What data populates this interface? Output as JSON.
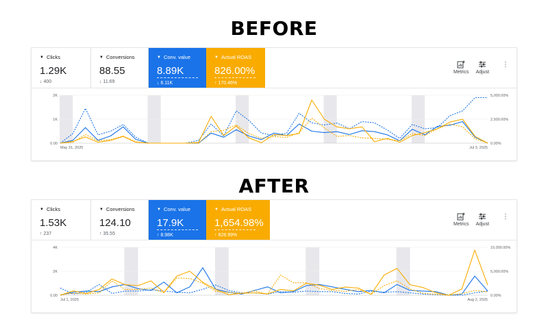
{
  "labels": {
    "before": "BEFORE",
    "after": "AFTER"
  },
  "tools": {
    "metrics": "Metrics",
    "adjust": "Adjust",
    "more": "⋮"
  },
  "before": {
    "cards": [
      {
        "label": "Clicks",
        "value": "1.29K",
        "change": "↓ 400",
        "color": "plain"
      },
      {
        "label": "Conversions",
        "value": "88.55",
        "change": "↓ 11.69",
        "color": "plain"
      },
      {
        "label": "Conv. value",
        "value": "8.89K",
        "change": "↓ 6.11K",
        "color": "blue"
      },
      {
        "label": "Actual ROAS",
        "value": "826.00%",
        "change": "↑ 170.46%",
        "color": "orange"
      }
    ],
    "chart_data": {
      "type": "line",
      "x_start_label": "May 31, 2025",
      "x_end_label": "Jul 3, 2025",
      "y_left_ticks": [
        "2K",
        "1K",
        "0.00"
      ],
      "y_right_ticks": [
        "5,000.00%",
        "2,500.00%",
        "0.00%"
      ],
      "ylim_left": [
        0,
        2000
      ],
      "ylim_right": [
        0,
        5000
      ],
      "weekend_bands": [
        0,
        7,
        14,
        21,
        28
      ],
      "colors": {
        "blue": "#1a73e8",
        "orange": "#f9ab00"
      },
      "series": [
        {
          "color": "blue",
          "dashed": false,
          "axis": "left",
          "values": [
            0,
            120,
            650,
            120,
            300,
            680,
            160,
            0,
            0,
            0,
            0,
            0,
            420,
            250,
            560,
            300,
            150,
            420,
            320,
            800,
            500,
            440,
            480,
            360,
            520,
            480,
            350,
            100,
            580,
            350,
            700,
            750,
            900,
            250,
            0
          ]
        },
        {
          "color": "blue",
          "dashed": true,
          "axis": "left",
          "values": [
            0,
            400,
            1450,
            350,
            500,
            780,
            250,
            0,
            0,
            0,
            0,
            120,
            800,
            300,
            1350,
            950,
            420,
            320,
            420,
            1250,
            850,
            760,
            840,
            600,
            900,
            850,
            550,
            200,
            780,
            600,
            650,
            1150,
            1350,
            1900,
            1900
          ]
        },
        {
          "color": "orange",
          "dashed": false,
          "axis": "right",
          "values": [
            0,
            180,
            650,
            100,
            280,
            700,
            100,
            0,
            0,
            0,
            0,
            80,
            2800,
            800,
            1800,
            550,
            50,
            900,
            800,
            1000,
            4500,
            2500,
            1700,
            1500,
            1700,
            150,
            500,
            100,
            800,
            1100,
            1500,
            2200,
            2500,
            700,
            0
          ]
        },
        {
          "color": "orange",
          "dashed": true,
          "axis": "right",
          "values": [
            0,
            100,
            900,
            250,
            380,
            750,
            150,
            0,
            0,
            0,
            0,
            0,
            1200,
            1350,
            1900,
            1000,
            500,
            700,
            600,
            1100,
            2600,
            1600,
            700,
            800,
            550,
            500,
            400,
            250,
            1000,
            800,
            1500,
            2000,
            1700,
            450,
            0
          ]
        }
      ]
    }
  },
  "after": {
    "cards": [
      {
        "label": "Clicks",
        "value": "1.53K",
        "change": "↑ 237",
        "color": "plain"
      },
      {
        "label": "Conversions",
        "value": "124.10",
        "change": "↑ 35.55",
        "color": "plain"
      },
      {
        "label": "Conv. value",
        "value": "17.9K",
        "change": "↑ 8.98K",
        "color": "blue"
      },
      {
        "label": "Actual ROAS",
        "value": "1,654.98%",
        "change": "↑ 828.99%",
        "color": "orange"
      }
    ],
    "chart_data": {
      "type": "line",
      "x_start_label": "Jul 1, 2025",
      "x_end_label": "Aug 2, 2025",
      "y_left_ticks": [
        "4K",
        "2K",
        "0.00"
      ],
      "y_right_ticks": [
        "10,000.00%",
        "5,000.00%",
        "0.00%"
      ],
      "ylim_left": [
        0,
        4000
      ],
      "ylim_right": [
        0,
        10000
      ],
      "weekend_bands": [
        5,
        12,
        19,
        26
      ],
      "colors": {
        "blue": "#1a73e8",
        "orange": "#f9ab00"
      },
      "series": [
        {
          "color": "blue",
          "dashed": false,
          "axis": "left",
          "values": [
            0,
            250,
            350,
            300,
            700,
            900,
            550,
            400,
            1100,
            200,
            700,
            2300,
            500,
            250,
            100,
            400,
            700,
            200,
            300,
            800,
            900,
            700,
            500,
            300,
            400,
            200,
            900,
            400,
            350,
            300,
            0,
            100,
            1600,
            350
          ]
        },
        {
          "color": "blue",
          "dashed": true,
          "axis": "left",
          "values": [
            600,
            100,
            250,
            900,
            150,
            350,
            350,
            450,
            350,
            250,
            200,
            500,
            850,
            400,
            200,
            200,
            100,
            300,
            250,
            350,
            300,
            300,
            150,
            100,
            350,
            250,
            300,
            200,
            100,
            50,
            0,
            0,
            200,
            350
          ]
        },
        {
          "color": "orange",
          "dashed": false,
          "axis": "right",
          "values": [
            0,
            900,
            350,
            1200,
            3400,
            2200,
            2000,
            3000,
            600,
            4000,
            5000,
            2700,
            1200,
            100,
            400,
            500,
            300,
            1200,
            900,
            2500,
            2100,
            1200,
            1700,
            1500,
            200,
            4200,
            5600,
            2200,
            1600,
            500,
            0,
            1300,
            9400,
            2100
          ]
        },
        {
          "color": "orange",
          "dashed": true,
          "axis": "right",
          "values": [
            100,
            400,
            250,
            500,
            3000,
            1200,
            1200,
            1500,
            500,
            3600,
            3500,
            2500,
            800,
            600,
            400,
            900,
            200,
            4200,
            2600,
            2600,
            1400,
            1000,
            800,
            1200,
            200,
            2000,
            3000,
            1300,
            400,
            200,
            0,
            300,
            1000,
            700
          ]
        }
      ]
    }
  }
}
